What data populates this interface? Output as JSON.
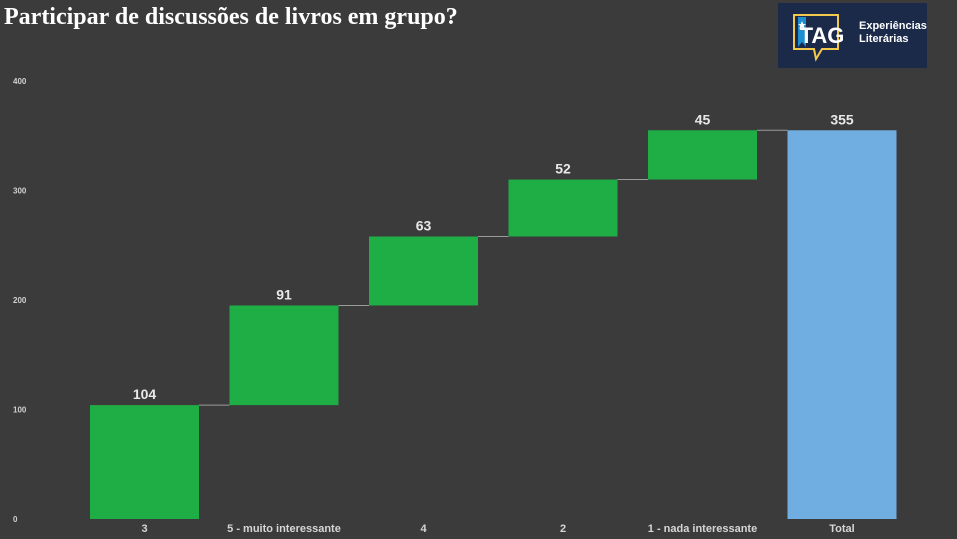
{
  "header": {
    "title": "Participar de discussões de livros em grupo?"
  },
  "logo": {
    "brand": "TAG",
    "line1": "Experiências",
    "line2": "Literárias",
    "background": "#1b2a49",
    "icon": "star-bookmark-icon"
  },
  "colors": {
    "increase": "#1fad45",
    "total": "#70ade0",
    "connector": "#9a9a9a",
    "background": "#3b3b3b"
  },
  "chart_data": {
    "type": "bar",
    "subtype": "waterfall",
    "title": "Participar de discussões de livros em grupo?",
    "categories": [
      "3",
      "5 - muito interessante",
      "4",
      "2",
      "1 - nada interessante",
      "Total"
    ],
    "values": [
      104,
      91,
      63,
      52,
      45,
      355
    ],
    "is_total": [
      false,
      false,
      false,
      false,
      false,
      true
    ],
    "data_labels": [
      "104",
      "91",
      "63",
      "52",
      "45",
      "355"
    ],
    "yticks": [
      0,
      100,
      200,
      300,
      400
    ],
    "ytick_labels": [
      "0",
      "100",
      "200",
      "300",
      "400"
    ],
    "ylim": [
      0,
      400
    ],
    "grid": false,
    "legend": "none"
  }
}
